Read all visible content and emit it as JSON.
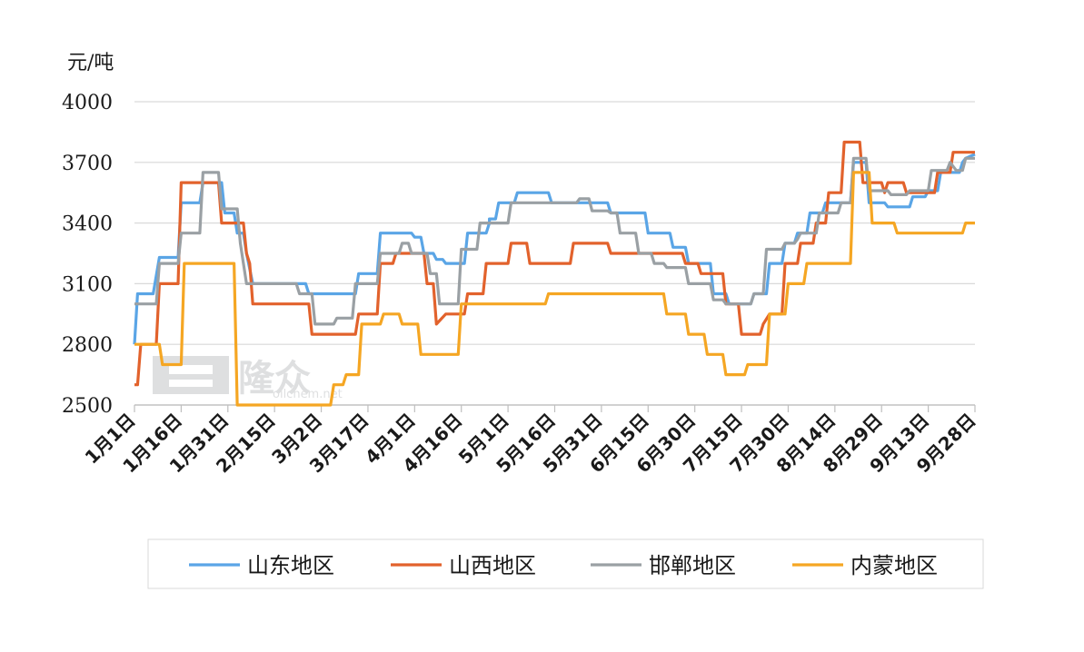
{
  "chart_data": {
    "type": "line",
    "ylabel": "元/吨",
    "ylim": [
      2500,
      4000
    ],
    "yticks": [
      2500,
      2800,
      3100,
      3400,
      3700,
      4000
    ],
    "xlim": [
      0,
      270
    ],
    "grid": "horizontal",
    "legend_position": "bottom",
    "categories": [
      "1月1日",
      "1月16日",
      "1月31日",
      "2月15日",
      "3月2日",
      "3月17日",
      "4月1日",
      "4月16日",
      "5月1日",
      "5月16日",
      "5月31日",
      "6月15日",
      "6月30日",
      "7月15日",
      "7月30日",
      "8月14日",
      "8月29日",
      "9月13日",
      "9月28日"
    ],
    "category_x": [
      0,
      15,
      30,
      45,
      60,
      75,
      90,
      105,
      120,
      135,
      150,
      165,
      180,
      195,
      210,
      225,
      240,
      255,
      270
    ],
    "watermark": {
      "text": "隆众",
      "subtext": "oilchem.net"
    },
    "series": [
      {
        "name": "山东地区",
        "color": "#5aa5e6",
        "points": [
          [
            0,
            2800
          ],
          [
            1,
            3050
          ],
          [
            6,
            3050
          ],
          [
            8,
            3230
          ],
          [
            14,
            3230
          ],
          [
            15,
            3500
          ],
          [
            21,
            3500
          ],
          [
            22,
            3600
          ],
          [
            28,
            3600
          ],
          [
            29,
            3450
          ],
          [
            32,
            3450
          ],
          [
            33,
            3350
          ],
          [
            35,
            3350
          ],
          [
            36,
            3250
          ],
          [
            38,
            3100
          ],
          [
            55,
            3100
          ],
          [
            56,
            3050
          ],
          [
            71,
            3050
          ],
          [
            72,
            3150
          ],
          [
            78,
            3150
          ],
          [
            79,
            3350
          ],
          [
            89,
            3350
          ],
          [
            90,
            3330
          ],
          [
            92,
            3330
          ],
          [
            93,
            3250
          ],
          [
            96,
            3250
          ],
          [
            97,
            3220
          ],
          [
            99,
            3220
          ],
          [
            100,
            3200
          ],
          [
            106,
            3200
          ],
          [
            107,
            3350
          ],
          [
            113,
            3350
          ],
          [
            114,
            3400
          ],
          [
            114,
            3420
          ],
          [
            116,
            3420
          ],
          [
            117,
            3500
          ],
          [
            122,
            3500
          ],
          [
            123,
            3550
          ],
          [
            133,
            3550
          ],
          [
            134,
            3500
          ],
          [
            152,
            3500
          ],
          [
            153,
            3450
          ],
          [
            164,
            3450
          ],
          [
            165,
            3350
          ],
          [
            172,
            3350
          ],
          [
            173,
            3280
          ],
          [
            177,
            3280
          ],
          [
            178,
            3200
          ],
          [
            185,
            3200
          ],
          [
            186,
            3050
          ],
          [
            190,
            3050
          ],
          [
            191,
            3000
          ],
          [
            198,
            3000
          ],
          [
            199,
            3050
          ],
          [
            203,
            3050
          ],
          [
            204,
            3200
          ],
          [
            208,
            3200
          ],
          [
            209,
            3300
          ],
          [
            212,
            3300
          ],
          [
            213,
            3350
          ],
          [
            216,
            3350
          ],
          [
            217,
            3450
          ],
          [
            221,
            3450
          ],
          [
            222,
            3500
          ],
          [
            230,
            3500
          ],
          [
            231,
            3700
          ],
          [
            235,
            3700
          ],
          [
            236,
            3500
          ],
          [
            241,
            3500
          ],
          [
            242,
            3480
          ],
          [
            249,
            3480
          ],
          [
            250,
            3530
          ],
          [
            254,
            3530
          ],
          [
            255,
            3560
          ],
          [
            258,
            3560
          ],
          [
            259,
            3650
          ],
          [
            265,
            3650
          ],
          [
            266,
            3700
          ],
          [
            267,
            3720
          ],
          [
            270,
            3740
          ]
        ]
      },
      {
        "name": "山西地区",
        "color": "#e2622c",
        "points": [
          [
            0,
            2600
          ],
          [
            1,
            2600
          ],
          [
            2,
            2800
          ],
          [
            7,
            2800
          ],
          [
            8,
            3100
          ],
          [
            14,
            3100
          ],
          [
            15,
            3600
          ],
          [
            27,
            3600
          ],
          [
            28,
            3400
          ],
          [
            32,
            3400
          ],
          [
            33,
            3400
          ],
          [
            35,
            3400
          ],
          [
            36,
            3250
          ],
          [
            37,
            3200
          ],
          [
            38,
            3000
          ],
          [
            56,
            3000
          ],
          [
            57,
            2850
          ],
          [
            71,
            2850
          ],
          [
            72,
            2950
          ],
          [
            78,
            2950
          ],
          [
            79,
            3200
          ],
          [
            83,
            3200
          ],
          [
            84,
            3250
          ],
          [
            93,
            3250
          ],
          [
            94,
            3100
          ],
          [
            96,
            3100
          ],
          [
            97,
            2900
          ],
          [
            100,
            2950
          ],
          [
            106,
            2950
          ],
          [
            107,
            3050
          ],
          [
            112,
            3050
          ],
          [
            113,
            3200
          ],
          [
            120,
            3200
          ],
          [
            121,
            3300
          ],
          [
            126,
            3300
          ],
          [
            127,
            3200
          ],
          [
            140,
            3200
          ],
          [
            141,
            3300
          ],
          [
            152,
            3300
          ],
          [
            153,
            3250
          ],
          [
            168,
            3250
          ],
          [
            169,
            3250
          ],
          [
            176,
            3250
          ],
          [
            177,
            3200
          ],
          [
            181,
            3200
          ],
          [
            182,
            3150
          ],
          [
            189,
            3150
          ],
          [
            190,
            3000
          ],
          [
            194,
            3000
          ],
          [
            195,
            2850
          ],
          [
            201,
            2850
          ],
          [
            202,
            2900
          ],
          [
            204,
            2950
          ],
          [
            208,
            2950
          ],
          [
            209,
            3200
          ],
          [
            213,
            3200
          ],
          [
            214,
            3300
          ],
          [
            218,
            3300
          ],
          [
            219,
            3400
          ],
          [
            222,
            3400
          ],
          [
            223,
            3550
          ],
          [
            227,
            3550
          ],
          [
            228,
            3800
          ],
          [
            233,
            3800
          ],
          [
            234,
            3600
          ],
          [
            240,
            3600
          ],
          [
            241,
            3550
          ],
          [
            242,
            3600
          ],
          [
            247,
            3600
          ],
          [
            248,
            3550
          ],
          [
            253,
            3550
          ],
          [
            254,
            3550
          ],
          [
            257,
            3550
          ],
          [
            258,
            3650
          ],
          [
            262,
            3650
          ],
          [
            263,
            3750
          ],
          [
            270,
            3750
          ]
        ]
      },
      {
        "name": "邯郸地区",
        "color": "#9aa0a4",
        "points": [
          [
            0,
            3000
          ],
          [
            7,
            3000
          ],
          [
            8,
            3200
          ],
          [
            14,
            3200
          ],
          [
            15,
            3350
          ],
          [
            21,
            3350
          ],
          [
            22,
            3650
          ],
          [
            27,
            3650
          ],
          [
            28,
            3470
          ],
          [
            33,
            3470
          ],
          [
            34,
            3300
          ],
          [
            35,
            3200
          ],
          [
            36,
            3100
          ],
          [
            52,
            3100
          ],
          [
            53,
            3050
          ],
          [
            57,
            3050
          ],
          [
            58,
            2900
          ],
          [
            64,
            2900
          ],
          [
            65,
            2930
          ],
          [
            70,
            2930
          ],
          [
            71,
            3100
          ],
          [
            78,
            3100
          ],
          [
            79,
            3250
          ],
          [
            85,
            3250
          ],
          [
            86,
            3300
          ],
          [
            88,
            3300
          ],
          [
            89,
            3250
          ],
          [
            94,
            3250
          ],
          [
            95,
            3150
          ],
          [
            97,
            3150
          ],
          [
            98,
            3000
          ],
          [
            104,
            3000
          ],
          [
            105,
            3270
          ],
          [
            110,
            3270
          ],
          [
            111,
            3400
          ],
          [
            120,
            3400
          ],
          [
            121,
            3500
          ],
          [
            126,
            3500
          ],
          [
            127,
            3500
          ],
          [
            142,
            3500
          ],
          [
            143,
            3520
          ],
          [
            146,
            3520
          ],
          [
            147,
            3460
          ],
          [
            152,
            3460
          ],
          [
            153,
            3450
          ],
          [
            155,
            3450
          ],
          [
            156,
            3350
          ],
          [
            161,
            3350
          ],
          [
            162,
            3250
          ],
          [
            166,
            3250
          ],
          [
            167,
            3200
          ],
          [
            170,
            3200
          ],
          [
            171,
            3180
          ],
          [
            177,
            3180
          ],
          [
            178,
            3100
          ],
          [
            185,
            3100
          ],
          [
            186,
            3020
          ],
          [
            189,
            3020
          ],
          [
            190,
            3000
          ],
          [
            198,
            3000
          ],
          [
            199,
            3050
          ],
          [
            202,
            3050
          ],
          [
            203,
            3270
          ],
          [
            208,
            3270
          ],
          [
            209,
            3300
          ],
          [
            212,
            3300
          ],
          [
            213,
            3320
          ],
          [
            214,
            3350
          ],
          [
            219,
            3350
          ],
          [
            220,
            3450
          ],
          [
            226,
            3450
          ],
          [
            227,
            3500
          ],
          [
            230,
            3500
          ],
          [
            231,
            3720
          ],
          [
            235,
            3720
          ],
          [
            236,
            3560
          ],
          [
            242,
            3560
          ],
          [
            243,
            3540
          ],
          [
            248,
            3540
          ],
          [
            249,
            3560
          ],
          [
            255,
            3560
          ],
          [
            256,
            3660
          ],
          [
            261,
            3660
          ],
          [
            262,
            3700
          ],
          [
            264,
            3660
          ],
          [
            266,
            3660
          ],
          [
            267,
            3720
          ],
          [
            270,
            3720
          ]
        ]
      },
      {
        "name": "内蒙地区",
        "color": "#f5a623",
        "points": [
          [
            0,
            2800
          ],
          [
            8,
            2800
          ],
          [
            9,
            2700
          ],
          [
            15,
            2700
          ],
          [
            16,
            3200
          ],
          [
            32,
            3200
          ],
          [
            33,
            2500
          ],
          [
            63,
            2500
          ],
          [
            64,
            2600
          ],
          [
            67,
            2600
          ],
          [
            68,
            2650
          ],
          [
            72,
            2650
          ],
          [
            73,
            2900
          ],
          [
            79,
            2900
          ],
          [
            80,
            2950
          ],
          [
            85,
            2950
          ],
          [
            86,
            2900
          ],
          [
            91,
            2900
          ],
          [
            92,
            2750
          ],
          [
            104,
            2750
          ],
          [
            105,
            3000
          ],
          [
            125,
            3000
          ],
          [
            126,
            3000
          ],
          [
            132,
            3000
          ],
          [
            133,
            3050
          ],
          [
            150,
            3050
          ],
          [
            151,
            3050
          ],
          [
            163,
            3050
          ],
          [
            170,
            3050
          ],
          [
            171,
            2950
          ],
          [
            177,
            2950
          ],
          [
            178,
            2850
          ],
          [
            183,
            2850
          ],
          [
            184,
            2750
          ],
          [
            189,
            2750
          ],
          [
            190,
            2650
          ],
          [
            196,
            2650
          ],
          [
            197,
            2700
          ],
          [
            203,
            2700
          ],
          [
            204,
            2950
          ],
          [
            209,
            2950
          ],
          [
            210,
            3100
          ],
          [
            215,
            3100
          ],
          [
            216,
            3200
          ],
          [
            230,
            3200
          ],
          [
            231,
            3650
          ],
          [
            236,
            3650
          ],
          [
            237,
            3400
          ],
          [
            244,
            3400
          ],
          [
            245,
            3350
          ],
          [
            266,
            3350
          ],
          [
            267,
            3400
          ],
          [
            270,
            3400
          ]
        ]
      }
    ]
  }
}
